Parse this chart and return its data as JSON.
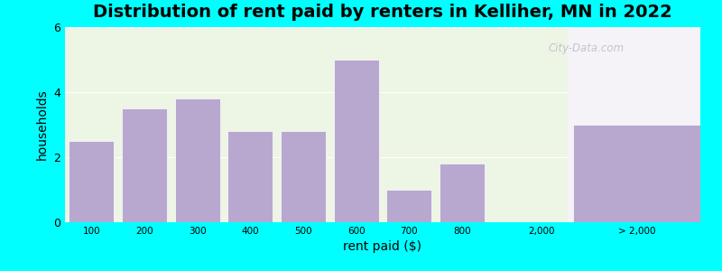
{
  "title": "Distribution of rent paid by renters in Kelliher, MN in 2022",
  "xlabel": "rent paid ($)",
  "ylabel": "households",
  "bar_color": "#b8a8d0",
  "background_outer": "#00ffff",
  "bar_labels": [
    "100",
    "200",
    "300",
    "400",
    "500",
    "600",
    "700",
    "800"
  ],
  "bar_values": [
    2.5,
    3.5,
    3.8,
    2.8,
    2.8,
    5.0,
    1.0,
    1.8
  ],
  "special_bar_label": "> 2,000",
  "special_bar_value": 3.0,
  "tick_2000_label": "2,000",
  "ylim": [
    0,
    6
  ],
  "yticks": [
    0,
    2,
    4,
    6
  ],
  "title_fontsize": 14,
  "axis_label_fontsize": 10,
  "xlim": [
    -0.5,
    11.5
  ],
  "left_bg_color": "#edf5e4",
  "right_bg_color": "#f5f3f8",
  "watermark_text": "City-Data.com",
  "watermark_color": "#c0b8c8"
}
